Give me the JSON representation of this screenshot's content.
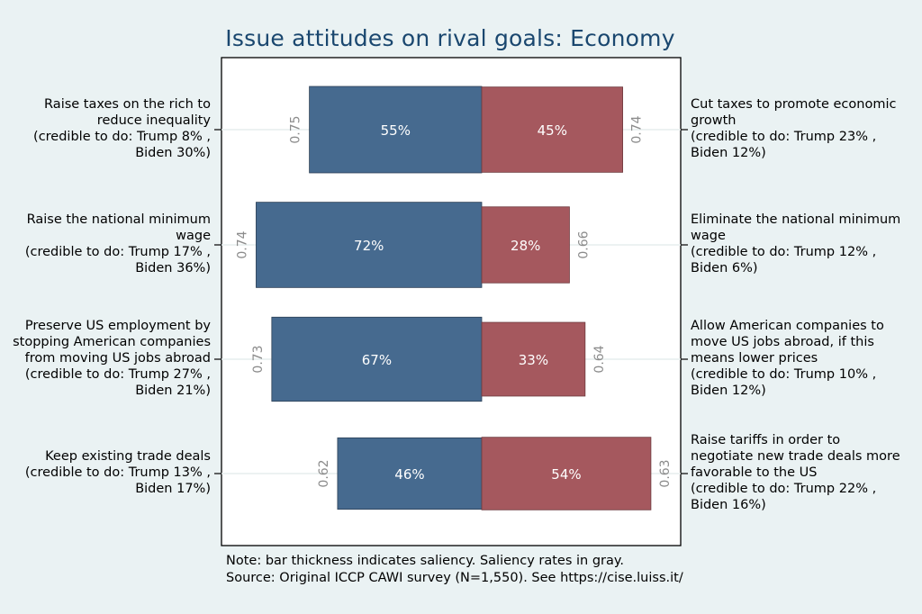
{
  "chart_data": {
    "type": "bar",
    "title": "Issue attitudes on rival goals: Economy",
    "xlim": [
      0,
      100
    ],
    "colors": {
      "left": "#466a8f",
      "right": "#a5585e",
      "saliency_text": "#8c8c8c",
      "title": "#1a476f",
      "background": "#eaf2f3",
      "plot_background": "#ffffff"
    },
    "rows": [
      {
        "left_label": [
          "Raise taxes on the rich to",
          "reduce inequality",
          "(credible to do: Trump 8% ,",
          "Biden 30%)"
        ],
        "right_label": [
          "Cut taxes to promote economic",
          "growth",
          "(credible to do: Trump 23% ,",
          "Biden 12%)"
        ],
        "left_value": 55,
        "right_value": 45,
        "left_text": "55%",
        "right_text": "45%",
        "left_saliency": 0.75,
        "right_saliency": 0.74,
        "left_saliency_text": "0.75",
        "right_saliency_text": "0.74"
      },
      {
        "left_label": [
          "Raise the national minimum",
          "wage",
          "(credible to do: Trump 17% ,",
          "Biden 36%)"
        ],
        "right_label": [
          "Eliminate the national minimum",
          "wage",
          "(credible to do: Trump 12% ,",
          "Biden 6%)"
        ],
        "left_value": 72,
        "right_value": 28,
        "left_text": "72%",
        "right_text": "28%",
        "left_saliency": 0.74,
        "right_saliency": 0.66,
        "left_saliency_text": "0.74",
        "right_saliency_text": "0.66"
      },
      {
        "left_label": [
          "Preserve US employment by",
          "stopping American companies",
          "from moving US jobs abroad",
          "(credible to do: Trump 27% ,",
          "Biden 21%)"
        ],
        "right_label": [
          "Allow American companies to",
          "move US jobs abroad, if this",
          "means lower prices",
          "(credible to do: Trump 10% ,",
          "Biden 12%)"
        ],
        "left_value": 67,
        "right_value": 33,
        "left_text": "67%",
        "right_text": "33%",
        "left_saliency": 0.73,
        "right_saliency": 0.64,
        "left_saliency_text": "0.73",
        "right_saliency_text": "0.64"
      },
      {
        "left_label": [
          "Keep existing trade deals",
          "(credible to do: Trump 13% ,",
          "Biden 17%)"
        ],
        "right_label": [
          "Raise tariffs in order to",
          "negotiate new trade deals more",
          "favorable to the US",
          "(credible to do: Trump 22% ,",
          "Biden 16%)"
        ],
        "left_value": 46,
        "right_value": 54,
        "left_text": "46%",
        "right_text": "54%",
        "left_saliency": 0.62,
        "right_saliency": 0.63,
        "left_saliency_text": "0.62",
        "right_saliency_text": "0.63"
      }
    ],
    "note": [
      "Note: bar thickness indicates saliency. Saliency rates in gray.",
      "Source: Original ICCP CAWI survey (N=1,550). See https://cise.luiss.it/"
    ]
  }
}
